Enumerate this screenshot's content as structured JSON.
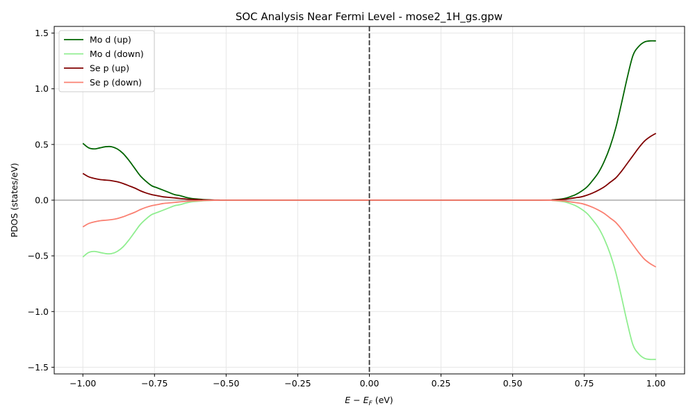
{
  "chart_data": {
    "type": "line",
    "title": "SOC Analysis Near Fermi Level - mose2_1H_gs.gpw",
    "xlabel_parts": [
      "E",
      " − ",
      "E",
      "F",
      " (eV)"
    ],
    "ylabel": "PDOS (states/eV)",
    "xlim": [
      -1.1,
      1.1
    ],
    "ylim": [
      -1.56,
      1.56
    ],
    "xticks": [
      -1.0,
      -0.75,
      -0.5,
      -0.25,
      0.0,
      0.25,
      0.5,
      0.75,
      1.0
    ],
    "xtick_labels": [
      "−1.00",
      "−0.75",
      "−0.50",
      "−0.25",
      "0.00",
      "0.25",
      "0.50",
      "0.75",
      "1.00"
    ],
    "yticks": [
      -1.5,
      -1.0,
      -0.5,
      0.0,
      0.5,
      1.0,
      1.5
    ],
    "ytick_labels": [
      "−1.5",
      "−1.0",
      "−0.5",
      "0.0",
      "0.5",
      "1.0",
      "1.5"
    ],
    "grid": true,
    "legend_position": "top-left",
    "fermi_line_x": 0.0,
    "zero_line_y": 0.0,
    "series": [
      {
        "name": "Mo d (up)",
        "color": "#006400",
        "x": [
          -1.0,
          -0.98,
          -0.96,
          -0.94,
          -0.92,
          -0.9,
          -0.88,
          -0.86,
          -0.84,
          -0.82,
          -0.8,
          -0.78,
          -0.76,
          -0.74,
          -0.72,
          -0.7,
          -0.68,
          -0.66,
          -0.64,
          -0.62,
          -0.6,
          -0.58,
          -0.56,
          -0.54,
          -0.52,
          -0.5,
          -0.3,
          0.0,
          0.3,
          0.6,
          0.64,
          0.68,
          0.7,
          0.72,
          0.74,
          0.76,
          0.78,
          0.8,
          0.82,
          0.84,
          0.86,
          0.88,
          0.9,
          0.92,
          0.94,
          0.96,
          0.98,
          1.0
        ],
        "values": [
          0.51,
          0.47,
          0.46,
          0.47,
          0.48,
          0.48,
          0.46,
          0.42,
          0.36,
          0.29,
          0.22,
          0.17,
          0.13,
          0.11,
          0.09,
          0.07,
          0.05,
          0.04,
          0.025,
          0.015,
          0.01,
          0.005,
          0.003,
          0.001,
          0.0,
          0.0,
          0.0,
          0.0,
          0.0,
          0.0,
          0.003,
          0.015,
          0.03,
          0.05,
          0.08,
          0.12,
          0.18,
          0.25,
          0.35,
          0.48,
          0.65,
          0.87,
          1.1,
          1.3,
          1.38,
          1.42,
          1.43,
          1.43
        ]
      },
      {
        "name": "Mo d (down)",
        "color": "#90ee90",
        "x": [
          -1.0,
          -0.98,
          -0.96,
          -0.94,
          -0.92,
          -0.9,
          -0.88,
          -0.86,
          -0.84,
          -0.82,
          -0.8,
          -0.78,
          -0.76,
          -0.74,
          -0.72,
          -0.7,
          -0.68,
          -0.66,
          -0.64,
          -0.62,
          -0.6,
          -0.58,
          -0.56,
          -0.54,
          -0.52,
          -0.5,
          -0.3,
          0.0,
          0.3,
          0.6,
          0.64,
          0.68,
          0.7,
          0.72,
          0.74,
          0.76,
          0.78,
          0.8,
          0.82,
          0.84,
          0.86,
          0.88,
          0.9,
          0.92,
          0.94,
          0.96,
          0.98,
          1.0
        ],
        "values": [
          -0.51,
          -0.47,
          -0.46,
          -0.47,
          -0.48,
          -0.48,
          -0.46,
          -0.42,
          -0.36,
          -0.29,
          -0.22,
          -0.17,
          -0.13,
          -0.11,
          -0.09,
          -0.07,
          -0.05,
          -0.04,
          -0.025,
          -0.015,
          -0.01,
          -0.005,
          -0.003,
          -0.001,
          0.0,
          0.0,
          0.0,
          0.0,
          0.0,
          0.0,
          -0.003,
          -0.015,
          -0.03,
          -0.05,
          -0.08,
          -0.12,
          -0.18,
          -0.25,
          -0.35,
          -0.48,
          -0.65,
          -0.87,
          -1.1,
          -1.3,
          -1.38,
          -1.42,
          -1.43,
          -1.43
        ]
      },
      {
        "name": "Se p (up)",
        "color": "#800000",
        "x": [
          -1.0,
          -0.98,
          -0.96,
          -0.94,
          -0.92,
          -0.9,
          -0.88,
          -0.86,
          -0.84,
          -0.82,
          -0.8,
          -0.78,
          -0.76,
          -0.74,
          -0.72,
          -0.7,
          -0.68,
          -0.66,
          -0.64,
          -0.62,
          -0.6,
          -0.58,
          -0.56,
          -0.54,
          -0.52,
          -0.5,
          -0.3,
          0.0,
          0.3,
          0.6,
          0.64,
          0.68,
          0.7,
          0.72,
          0.74,
          0.76,
          0.78,
          0.8,
          0.82,
          0.84,
          0.86,
          0.88,
          0.9,
          0.92,
          0.94,
          0.96,
          0.98,
          1.0
        ],
        "values": [
          0.24,
          0.21,
          0.195,
          0.185,
          0.18,
          0.175,
          0.165,
          0.15,
          0.13,
          0.11,
          0.085,
          0.065,
          0.05,
          0.04,
          0.03,
          0.025,
          0.02,
          0.015,
          0.01,
          0.007,
          0.005,
          0.003,
          0.002,
          0.001,
          0.0,
          0.0,
          0.0,
          0.0,
          0.0,
          0.0,
          0.002,
          0.008,
          0.015,
          0.022,
          0.03,
          0.045,
          0.065,
          0.09,
          0.12,
          0.16,
          0.2,
          0.26,
          0.33,
          0.4,
          0.47,
          0.53,
          0.57,
          0.6
        ]
      },
      {
        "name": "Se p (down)",
        "color": "#fa8072",
        "x": [
          -1.0,
          -0.98,
          -0.96,
          -0.94,
          -0.92,
          -0.9,
          -0.88,
          -0.86,
          -0.84,
          -0.82,
          -0.8,
          -0.78,
          -0.76,
          -0.74,
          -0.72,
          -0.7,
          -0.68,
          -0.66,
          -0.64,
          -0.62,
          -0.6,
          -0.58,
          -0.56,
          -0.54,
          -0.52,
          -0.5,
          -0.3,
          0.0,
          0.3,
          0.6,
          0.64,
          0.68,
          0.7,
          0.72,
          0.74,
          0.76,
          0.78,
          0.8,
          0.82,
          0.84,
          0.86,
          0.88,
          0.9,
          0.92,
          0.94,
          0.96,
          0.98,
          1.0
        ],
        "values": [
          -0.24,
          -0.21,
          -0.195,
          -0.185,
          -0.18,
          -0.175,
          -0.165,
          -0.15,
          -0.13,
          -0.11,
          -0.085,
          -0.065,
          -0.05,
          -0.04,
          -0.03,
          -0.025,
          -0.02,
          -0.015,
          -0.01,
          -0.007,
          -0.005,
          -0.003,
          -0.002,
          -0.001,
          0.0,
          0.0,
          0.0,
          0.0,
          0.0,
          0.0,
          -0.002,
          -0.008,
          -0.015,
          -0.022,
          -0.03,
          -0.045,
          -0.065,
          -0.09,
          -0.12,
          -0.16,
          -0.2,
          -0.26,
          -0.33,
          -0.4,
          -0.47,
          -0.53,
          -0.57,
          -0.6
        ]
      }
    ]
  }
}
